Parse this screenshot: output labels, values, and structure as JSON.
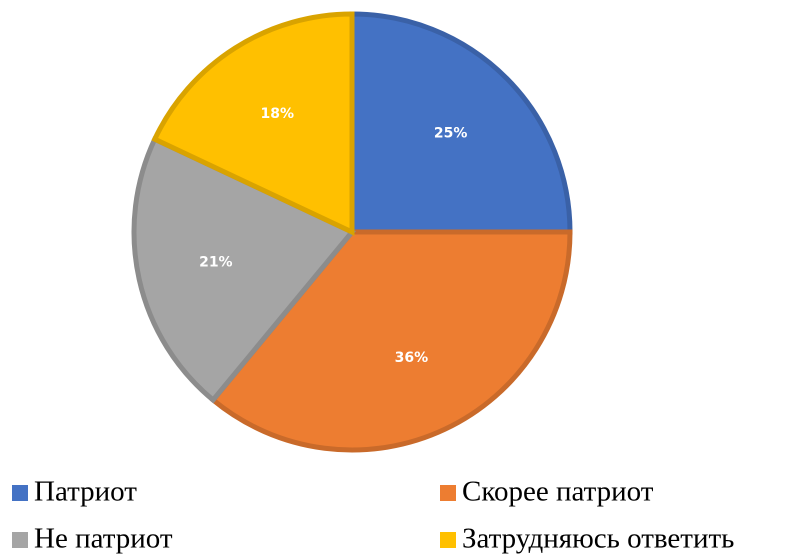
{
  "chart_data": {
    "type": "pie",
    "categories": [
      "Патриот",
      "Скорее патриот",
      "Не патриот",
      "Затрудняюсь ответить"
    ],
    "values": [
      25,
      36,
      21,
      18
    ],
    "value_labels": [
      "25%",
      "36%",
      "21%",
      "18%"
    ],
    "colors": [
      "#4472c4",
      "#ed7d31",
      "#a5a5a5",
      "#ffc000"
    ],
    "legend": "bottom"
  }
}
